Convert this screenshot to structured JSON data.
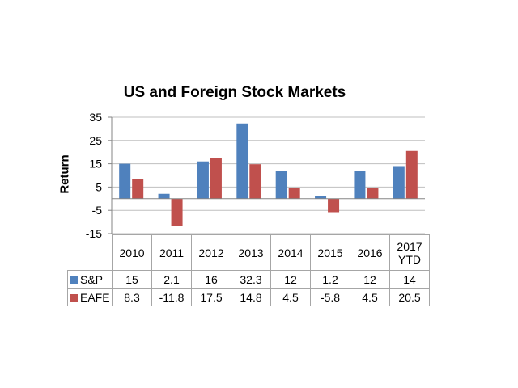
{
  "chart_data": {
    "type": "bar",
    "title": "US and Foreign Stock Markets",
    "ylabel": "Return",
    "xlabel": "",
    "ylim": [
      -15,
      35
    ],
    "yticks": [
      -15,
      -5,
      5,
      15,
      25,
      35
    ],
    "categories": [
      "2010",
      "2011",
      "2012",
      "2013",
      "2014",
      "2015",
      "2016",
      "2017 YTD"
    ],
    "series": [
      {
        "name": "S&P",
        "color": "#4f81bd",
        "values": [
          15,
          2.1,
          16,
          32.3,
          12,
          1.2,
          12,
          14
        ],
        "labels": [
          "15",
          "2.1",
          "16",
          "32.3",
          "12",
          "1.2",
          "12",
          "14"
        ]
      },
      {
        "name": "EAFE",
        "color": "#c0504d",
        "values": [
          8.3,
          -11.8,
          17.5,
          14.8,
          4.5,
          -5.8,
          4.5,
          20.5
        ],
        "labels": [
          "8.3",
          "-11.8",
          "17.5",
          "14.8",
          "4.5",
          "-5.8",
          "4.5",
          "20.5"
        ]
      }
    ],
    "grid": true,
    "legend": "data-table"
  }
}
